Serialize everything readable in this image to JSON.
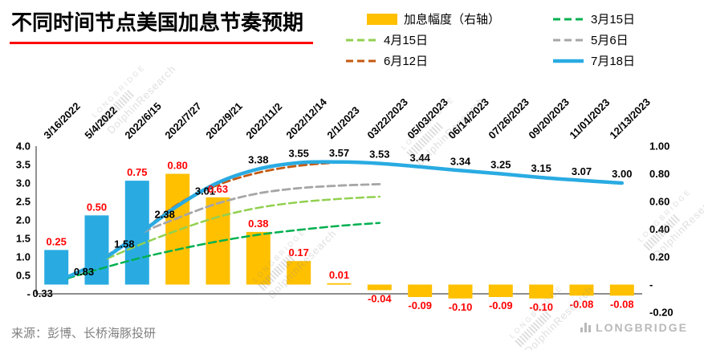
{
  "title": "不同时间节点美国加息节奏预期",
  "source_note": "来源：彭博、长桥海豚投研",
  "brand": "LONGBRIDGE",
  "watermark": {
    "line1": "LONGBRIDGE",
    "line2": "DolphinResearch"
  },
  "legend": [
    {
      "label": "加息幅度（右轴）",
      "type": "bar",
      "color": "#FFC000"
    },
    {
      "label": "3月15日",
      "type": "dashed",
      "color": "#00B050"
    },
    {
      "label": "4月15日",
      "type": "dashed",
      "color": "#92D050"
    },
    {
      "label": "5月6日",
      "type": "dashed",
      "color": "#A6A6A6"
    },
    {
      "label": "6月12日",
      "type": "dashed",
      "color": "#C55A11"
    },
    {
      "label": "7月18日",
      "type": "solid",
      "color": "#29ABE2"
    }
  ],
  "chart_data": {
    "type": "combo bar+line",
    "categories": [
      "3/16/2022",
      "5/4/2022",
      "2022/6/15",
      "2022/7/27",
      "2022/9/21",
      "2022/11/2",
      "2022/12/14",
      "2/1/2023",
      "03/22/2023",
      "05/03/2023",
      "06/14/2023",
      "07/26/2023",
      "09/20/2023",
      "11/01/2023",
      "12/13/2023"
    ],
    "bars": {
      "name": "加息幅度（右轴）",
      "axis": "right",
      "values": [
        0.25,
        0.5,
        0.75,
        0.8,
        0.63,
        0.38,
        0.17,
        0.01,
        -0.04,
        -0.09,
        -0.1,
        -0.09,
        -0.1,
        -0.08,
        -0.08
      ],
      "colors": [
        "#29ABE2",
        "#29ABE2",
        "#29ABE2",
        "#FFC000",
        "#FFC000",
        "#FFC000",
        "#FFC000",
        "#FFC000",
        "#FFC000",
        "#FFC000",
        "#FFC000",
        "#FFC000",
        "#FFC000",
        "#FFC000",
        "#FFC000"
      ],
      "label_color": "#FF0000"
    },
    "series": [
      {
        "name": "3月15日",
        "color": "#00B050",
        "dash": true,
        "width": 2.5,
        "start": 0,
        "values": [
          0.33,
          0.65,
          0.95,
          1.2,
          1.42,
          1.6,
          1.73,
          1.84,
          1.92
        ],
        "labels": false
      },
      {
        "name": "4月15日",
        "color": "#92D050",
        "dash": true,
        "width": 2.5,
        "start": 1,
        "values": [
          0.83,
          1.3,
          1.72,
          2.08,
          2.33,
          2.48,
          2.57,
          2.63
        ],
        "labels": false
      },
      {
        "name": "5月6日",
        "color": "#A6A6A6",
        "dash": true,
        "width": 2.8,
        "start": 1,
        "values": [
          0.83,
          1.58,
          2.05,
          2.45,
          2.72,
          2.86,
          2.93,
          2.97
        ],
        "labels": false
      },
      {
        "name": "6月12日",
        "color": "#C55A11",
        "dash": true,
        "width": 2.8,
        "start": 2,
        "values": [
          1.58,
          2.42,
          2.95,
          3.28,
          3.47,
          3.56
        ],
        "labels": false
      },
      {
        "name": "7月18日",
        "color": "#29ABE2",
        "dash": false,
        "width": 4.5,
        "start": 0,
        "values": [
          0.33,
          0.83,
          1.58,
          2.38,
          3.01,
          3.38,
          3.55,
          3.57,
          3.53,
          3.44,
          3.34,
          3.25,
          3.15,
          3.07,
          3.0
        ],
        "labels": true,
        "label_color": "#000000"
      }
    ],
    "left_axis": {
      "ticks": [
        "4.0",
        "3.5",
        "3.0",
        "2.5",
        "2.0",
        "1.5",
        "1.0",
        "0.5",
        "-"
      ],
      "min": 0,
      "max": 4
    },
    "right_axis": {
      "ticks": [
        "1.00",
        "0.80",
        "0.60",
        "0.40",
        "0.20",
        "-",
        "-0.20"
      ],
      "min": -0.2,
      "max": 1.0
    },
    "grid": false,
    "legend_position": "top-right"
  }
}
